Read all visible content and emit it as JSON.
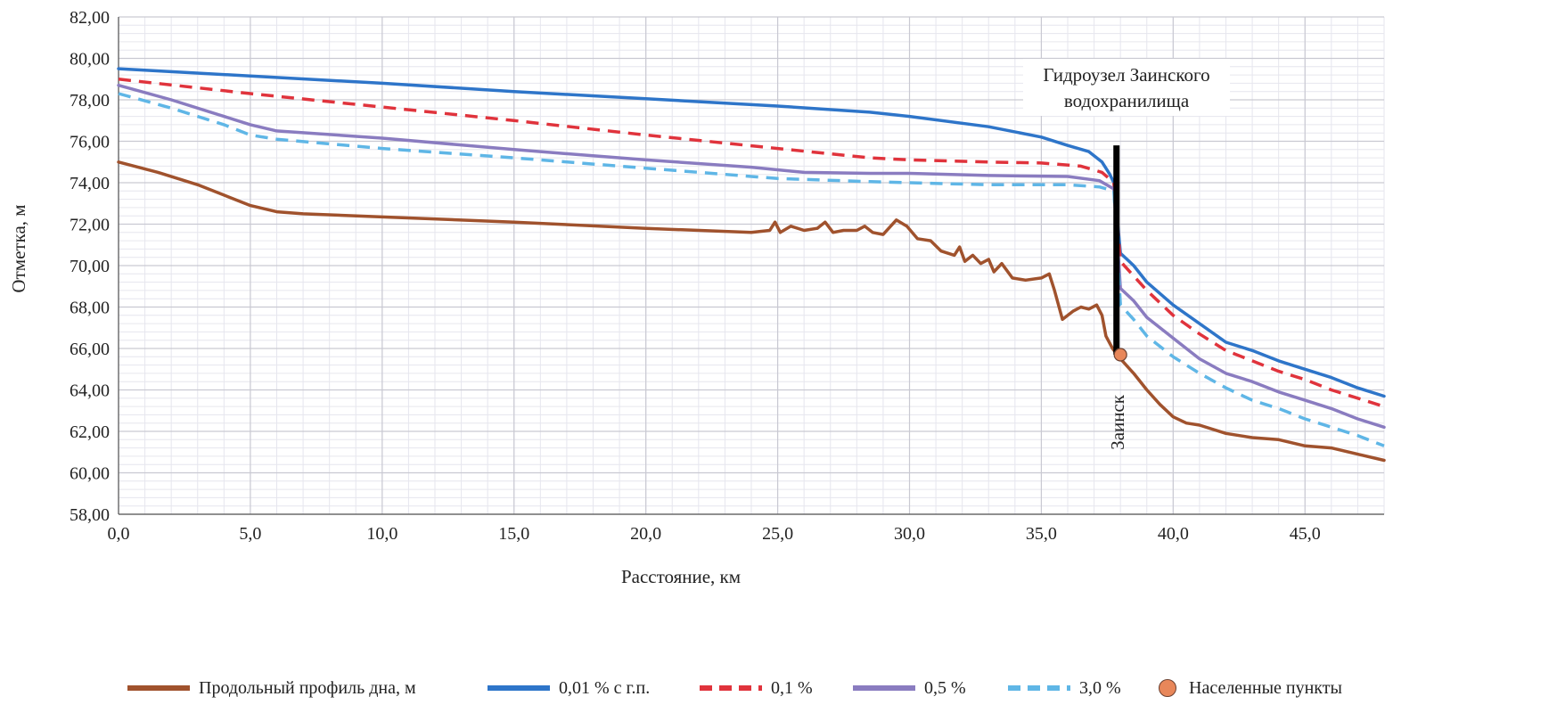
{
  "chart_data": {
    "type": "line",
    "title": "",
    "xlabel": "Расстояние, км",
    "ylabel": "Отметка, м",
    "xlim": [
      0,
      48
    ],
    "ylim": [
      58,
      82
    ],
    "x_ticks": [
      "0,0",
      "5,0",
      "10,0",
      "15,0",
      "20,0",
      "25,0",
      "30,0",
      "35,0",
      "40,0",
      "45,0"
    ],
    "y_ticks": [
      "58,00",
      "60,00",
      "62,00",
      "64,00",
      "66,00",
      "68,00",
      "70,00",
      "72,00",
      "74,00",
      "76,00",
      "78,00",
      "80,00",
      "82,00"
    ],
    "grid": true,
    "legend_position": "bottom",
    "series": [
      {
        "name": "Продольный профиль дна, м",
        "color": "#a0522d",
        "dash": "solid",
        "points": [
          [
            0,
            75.0
          ],
          [
            1.5,
            74.5
          ],
          [
            3,
            73.9
          ],
          [
            4,
            73.4
          ],
          [
            5,
            72.9
          ],
          [
            6,
            72.6
          ],
          [
            7,
            72.5
          ],
          [
            10,
            72.35
          ],
          [
            15,
            72.1
          ],
          [
            20,
            71.8
          ],
          [
            24,
            71.6
          ],
          [
            24.7,
            71.7
          ],
          [
            24.9,
            72.1
          ],
          [
            25.1,
            71.6
          ],
          [
            25.5,
            71.9
          ],
          [
            26,
            71.7
          ],
          [
            26.5,
            71.8
          ],
          [
            26.8,
            72.1
          ],
          [
            27.1,
            71.6
          ],
          [
            27.5,
            71.7
          ],
          [
            28,
            71.7
          ],
          [
            28.3,
            71.9
          ],
          [
            28.6,
            71.6
          ],
          [
            29,
            71.5
          ],
          [
            29.5,
            72.2
          ],
          [
            29.9,
            71.9
          ],
          [
            30.3,
            71.3
          ],
          [
            30.8,
            71.2
          ],
          [
            31.2,
            70.7
          ],
          [
            31.7,
            70.5
          ],
          [
            31.9,
            70.9
          ],
          [
            32.1,
            70.2
          ],
          [
            32.4,
            70.5
          ],
          [
            32.7,
            70.1
          ],
          [
            33,
            70.3
          ],
          [
            33.2,
            69.7
          ],
          [
            33.5,
            70.1
          ],
          [
            33.9,
            69.4
          ],
          [
            34.4,
            69.3
          ],
          [
            35,
            69.4
          ],
          [
            35.3,
            69.6
          ],
          [
            35.5,
            68.8
          ],
          [
            35.8,
            67.4
          ],
          [
            36.2,
            67.8
          ],
          [
            36.5,
            68.0
          ],
          [
            36.8,
            67.9
          ],
          [
            37.1,
            68.1
          ],
          [
            37.3,
            67.6
          ],
          [
            37.45,
            66.6
          ],
          [
            37.7,
            66.0
          ],
          [
            38,
            65.5
          ],
          [
            38.5,
            64.8
          ],
          [
            39,
            64.0
          ],
          [
            39.5,
            63.3
          ],
          [
            40,
            62.7
          ],
          [
            40.5,
            62.4
          ],
          [
            41,
            62.3
          ],
          [
            42,
            61.9
          ],
          [
            43,
            61.7
          ],
          [
            44,
            61.6
          ],
          [
            45,
            61.3
          ],
          [
            46,
            61.2
          ],
          [
            47,
            60.9
          ],
          [
            48,
            60.6
          ]
        ]
      },
      {
        "name": "0,01 % с г.п.",
        "color": "#2e75c9",
        "dash": "solid",
        "points": [
          [
            0,
            79.5
          ],
          [
            5,
            79.15
          ],
          [
            10,
            78.8
          ],
          [
            15,
            78.4
          ],
          [
            20,
            78.05
          ],
          [
            25,
            77.7
          ],
          [
            28.5,
            77.4
          ],
          [
            30,
            77.2
          ],
          [
            33,
            76.7
          ],
          [
            35,
            76.2
          ],
          [
            36,
            75.8
          ],
          [
            36.8,
            75.5
          ],
          [
            37.3,
            75.0
          ],
          [
            37.6,
            74.4
          ],
          [
            37.75,
            74.0
          ],
          [
            38,
            70.6
          ],
          [
            38.5,
            70.0
          ],
          [
            39,
            69.2
          ],
          [
            40,
            68.1
          ],
          [
            41,
            67.2
          ],
          [
            42,
            66.3
          ],
          [
            43,
            65.9
          ],
          [
            44,
            65.4
          ],
          [
            45,
            65.0
          ],
          [
            46,
            64.6
          ],
          [
            47,
            64.1
          ],
          [
            48,
            63.7
          ]
        ]
      },
      {
        "name": "0,1 %",
        "color": "#e0333c",
        "dash": "dashed",
        "points": [
          [
            0,
            79.0
          ],
          [
            5,
            78.3
          ],
          [
            10,
            77.65
          ],
          [
            15,
            77.0
          ],
          [
            20,
            76.3
          ],
          [
            25,
            75.65
          ],
          [
            28.5,
            75.2
          ],
          [
            30,
            75.1
          ],
          [
            33,
            75.0
          ],
          [
            35,
            74.95
          ],
          [
            36.5,
            74.8
          ],
          [
            37.3,
            74.5
          ],
          [
            37.75,
            74.0
          ],
          [
            38,
            70.2
          ],
          [
            38.5,
            69.5
          ],
          [
            39,
            68.8
          ],
          [
            40,
            67.6
          ],
          [
            41,
            66.7
          ],
          [
            42,
            65.9
          ],
          [
            43,
            65.4
          ],
          [
            44,
            64.9
          ],
          [
            45,
            64.5
          ],
          [
            46,
            64.0
          ],
          [
            47,
            63.6
          ],
          [
            48,
            63.2
          ]
        ]
      },
      {
        "name": "0,5 %",
        "color": "#8a7cc0",
        "dash": "solid",
        "points": [
          [
            0,
            78.7
          ],
          [
            2,
            78.0
          ],
          [
            4,
            77.2
          ],
          [
            5,
            76.8
          ],
          [
            6,
            76.5
          ],
          [
            10,
            76.15
          ],
          [
            15,
            75.6
          ],
          [
            20,
            75.1
          ],
          [
            24,
            74.75
          ],
          [
            26,
            74.5
          ],
          [
            28.5,
            74.45
          ],
          [
            30,
            74.45
          ],
          [
            33,
            74.35
          ],
          [
            36,
            74.3
          ],
          [
            37.2,
            74.1
          ],
          [
            37.75,
            73.7
          ],
          [
            38,
            68.9
          ],
          [
            38.5,
            68.3
          ],
          [
            39,
            67.5
          ],
          [
            40,
            66.5
          ],
          [
            41,
            65.5
          ],
          [
            42,
            64.8
          ],
          [
            43,
            64.4
          ],
          [
            44,
            63.9
          ],
          [
            45,
            63.5
          ],
          [
            46,
            63.1
          ],
          [
            47,
            62.6
          ],
          [
            48,
            62.2
          ]
        ]
      },
      {
        "name": "3,0 %",
        "color": "#5fb6e6",
        "dash": "dashed",
        "points": [
          [
            0,
            78.3
          ],
          [
            2,
            77.6
          ],
          [
            4,
            76.8
          ],
          [
            5,
            76.3
          ],
          [
            6,
            76.1
          ],
          [
            10,
            75.65
          ],
          [
            15,
            75.2
          ],
          [
            20,
            74.7
          ],
          [
            25,
            74.2
          ],
          [
            28.5,
            74.05
          ],
          [
            30,
            74.0
          ],
          [
            33,
            73.9
          ],
          [
            36,
            73.9
          ],
          [
            37.2,
            73.8
          ],
          [
            37.75,
            73.6
          ],
          [
            38,
            68.1
          ],
          [
            38.5,
            67.4
          ],
          [
            39,
            66.6
          ],
          [
            40,
            65.6
          ],
          [
            41,
            64.8
          ],
          [
            42,
            64.1
          ],
          [
            43,
            63.5
          ],
          [
            44,
            63.1
          ],
          [
            45,
            62.6
          ],
          [
            46,
            62.2
          ],
          [
            47,
            61.8
          ],
          [
            48,
            61.3
          ]
        ]
      }
    ],
    "dam": {
      "x": 37.85,
      "y_top": 75.8,
      "y_bottom": 65.7,
      "color": "#000000"
    },
    "settlements": {
      "name": "Населенные пункты",
      "color": "#e8875a",
      "points": [
        {
          "x": 38.0,
          "y": 65.7,
          "label": "Заинск"
        }
      ]
    },
    "annotations": [
      "Гидроузел Заинского",
      "водохранилища"
    ]
  }
}
